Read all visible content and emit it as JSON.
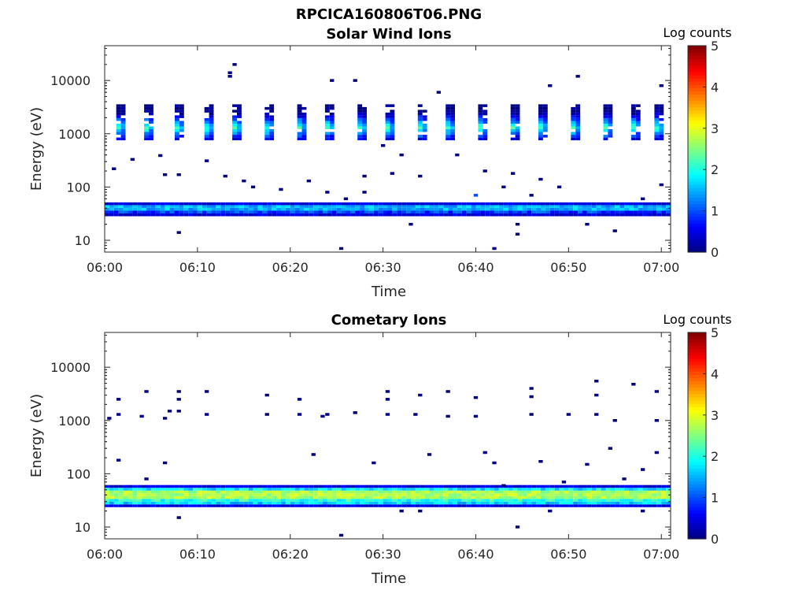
{
  "figure_title": "RPCICA160806T06.PNG",
  "colormap": "jet",
  "chart_data": [
    {
      "type": "heatmap",
      "title": "Solar Wind Ions",
      "xlabel": "Time",
      "ylabel": "Energy (eV)",
      "yscale": "log",
      "ylim": [
        6,
        45000
      ],
      "xlim": [
        "06:00",
        "07:01"
      ],
      "xticks": [
        "06:00",
        "06:10",
        "06:20",
        "06:30",
        "06:40",
        "06:50",
        "07:00"
      ],
      "yticks": [
        10,
        100,
        1000,
        10000
      ],
      "ytick_labels": [
        "10",
        "100",
        "1000",
        "10000"
      ],
      "colorbar": {
        "label": "Log counts",
        "range": [
          0,
          5
        ],
        "ticks": [
          "0",
          "1",
          "2",
          "3",
          "4",
          "5"
        ]
      },
      "grid": false,
      "features": {
        "ion_band": {
          "energy_range_eV": [
            30,
            50
          ],
          "peak_log_counts": 1.8,
          "typical_log_counts": 1.0
        },
        "solar_wind_beams": {
          "energy_range_eV": [
            800,
            3500
          ],
          "peak_energy_eV": 1300,
          "peak_log_counts": 2.2,
          "beam_minutes": [
            1.5,
            4.5,
            7.8,
            11,
            14,
            17.5,
            21,
            24,
            27.5,
            30.5,
            34,
            37,
            40.5,
            44,
            47,
            50.5,
            54,
            57,
            59.5
          ]
        },
        "sparse_points": [
          [
            1,
            220,
            0
          ],
          [
            3,
            330,
            0
          ],
          [
            6,
            390,
            0
          ],
          [
            6.5,
            170,
            0
          ],
          [
            8,
            170,
            0
          ],
          [
            8,
            14,
            0
          ],
          [
            11,
            310,
            0
          ],
          [
            13,
            160,
            0
          ],
          [
            14,
            20000,
            0
          ],
          [
            13.5,
            14000,
            0
          ],
          [
            13.5,
            12000,
            0
          ],
          [
            15,
            130,
            0
          ],
          [
            16,
            100,
            0
          ],
          [
            19,
            90,
            0
          ],
          [
            22,
            130,
            0
          ],
          [
            24,
            80,
            0
          ],
          [
            24.5,
            10000,
            0
          ],
          [
            25.5,
            7,
            0
          ],
          [
            26,
            60,
            0
          ],
          [
            27,
            10000,
            0
          ],
          [
            28,
            160,
            0
          ],
          [
            28,
            80,
            0
          ],
          [
            30,
            600,
            0
          ],
          [
            31,
            180,
            0
          ],
          [
            32,
            400,
            0
          ],
          [
            33,
            20,
            0
          ],
          [
            34,
            160,
            0
          ],
          [
            36,
            6000,
            0
          ],
          [
            38,
            400,
            0
          ],
          [
            41,
            200,
            0
          ],
          [
            43,
            100,
            0
          ],
          [
            44,
            180,
            0
          ],
          [
            44.5,
            20,
            0
          ],
          [
            44.5,
            13,
            0
          ],
          [
            46,
            70,
            0
          ],
          [
            47,
            140,
            0
          ],
          [
            48,
            8000,
            0
          ],
          [
            49,
            100,
            0
          ],
          [
            51,
            12000,
            0
          ],
          [
            52,
            20,
            0
          ],
          [
            55,
            15,
            0
          ],
          [
            58,
            60,
            0
          ],
          [
            60,
            8000,
            0
          ],
          [
            60,
            110,
            0
          ],
          [
            42,
            7,
            0
          ],
          [
            40,
            70,
            1
          ]
        ]
      }
    },
    {
      "type": "heatmap",
      "title": "Cometary Ions",
      "xlabel": "Time",
      "ylabel": "Energy (eV)",
      "yscale": "log",
      "ylim": [
        6,
        45000
      ],
      "xlim": [
        "06:00",
        "07:01"
      ],
      "xticks": [
        "06:00",
        "06:10",
        "06:20",
        "06:30",
        "06:40",
        "06:50",
        "07:00"
      ],
      "yticks": [
        10,
        100,
        1000,
        10000
      ],
      "ytick_labels": [
        "10",
        "100",
        "1000",
        "10000"
      ],
      "colorbar": {
        "label": "Log counts",
        "range": [
          0,
          5
        ],
        "ticks": [
          "0",
          "1",
          "2",
          "3",
          "4",
          "5"
        ]
      },
      "grid": false,
      "features": {
        "ion_band": {
          "energy_range_eV": [
            25,
            60
          ],
          "peak_log_counts": 3.0,
          "typical_log_counts": 2.2
        },
        "sparse_points": [
          [
            0.5,
            1100,
            0
          ],
          [
            1.5,
            1300,
            0
          ],
          [
            1.5,
            2500,
            0
          ],
          [
            1.5,
            180,
            0
          ],
          [
            4,
            1200,
            0
          ],
          [
            4.5,
            3500,
            0
          ],
          [
            4.5,
            80,
            0
          ],
          [
            6.5,
            1100,
            0
          ],
          [
            6.5,
            160,
            0
          ],
          [
            7,
            1500,
            0
          ],
          [
            8,
            1500,
            0
          ],
          [
            8,
            3500,
            0
          ],
          [
            8,
            2500,
            0
          ],
          [
            8,
            15,
            0
          ],
          [
            11,
            1300,
            0
          ],
          [
            11,
            3500,
            0
          ],
          [
            17.5,
            3000,
            0
          ],
          [
            17.5,
            1300,
            0
          ],
          [
            21,
            1300,
            0
          ],
          [
            21,
            2500,
            0
          ],
          [
            22.5,
            230,
            0
          ],
          [
            23.5,
            1200,
            0
          ],
          [
            24,
            1300,
            0
          ],
          [
            25.5,
            7,
            0
          ],
          [
            27,
            1400,
            0
          ],
          [
            29,
            160,
            0
          ],
          [
            30.5,
            3500,
            0
          ],
          [
            30.5,
            1300,
            0
          ],
          [
            30.5,
            2500,
            0
          ],
          [
            32,
            20,
            0
          ],
          [
            33.5,
            1300,
            0
          ],
          [
            34,
            3000,
            0
          ],
          [
            34,
            20,
            0
          ],
          [
            35,
            230,
            0
          ],
          [
            37,
            3500,
            0
          ],
          [
            37,
            1200,
            0
          ],
          [
            40,
            2700,
            0
          ],
          [
            40,
            1200,
            0
          ],
          [
            41,
            250,
            0
          ],
          [
            42,
            160,
            0
          ],
          [
            43,
            60,
            0
          ],
          [
            44.5,
            10,
            0
          ],
          [
            46,
            4000,
            0
          ],
          [
            46,
            2800,
            0
          ],
          [
            46,
            1300,
            0
          ],
          [
            47,
            170,
            0
          ],
          [
            48,
            20,
            0
          ],
          [
            49.5,
            70,
            0
          ],
          [
            50,
            1300,
            0
          ],
          [
            52,
            150,
            0
          ],
          [
            53,
            5500,
            0
          ],
          [
            53,
            3000,
            0
          ],
          [
            53,
            1300,
            0
          ],
          [
            55,
            1000,
            0
          ],
          [
            56,
            80,
            0
          ],
          [
            57,
            4800,
            0
          ],
          [
            58,
            120,
            0
          ],
          [
            58,
            20,
            0
          ],
          [
            59.5,
            3500,
            0
          ],
          [
            59.5,
            1000,
            0
          ],
          [
            59.5,
            250,
            0
          ],
          [
            54.5,
            300,
            0
          ]
        ]
      }
    }
  ]
}
